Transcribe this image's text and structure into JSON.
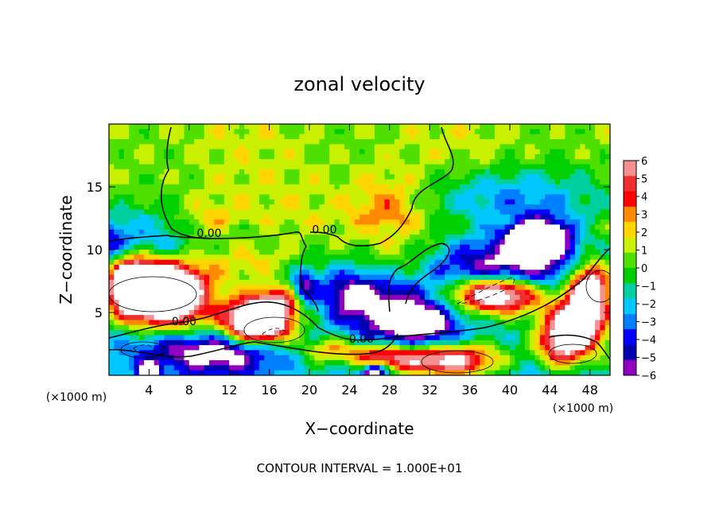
{
  "chart_data": {
    "type": "heatmap",
    "title": "zonal velocity",
    "xlabel": "X−coordinate",
    "ylabel": "Z−coordinate",
    "x_unit_left": "(×1000 m)",
    "x_unit_right": "(×1000 m)",
    "xlim": [
      0,
      50
    ],
    "ylim": [
      0,
      20
    ],
    "x_ticks": [
      4,
      8,
      12,
      16,
      20,
      24,
      28,
      32,
      36,
      40,
      44,
      48
    ],
    "y_ticks": [
      5,
      10,
      15
    ],
    "colorbar": {
      "ticks": [
        6,
        5,
        4,
        3,
        2,
        1,
        0,
        -1,
        -2,
        -3,
        -4,
        -5,
        -6
      ],
      "range": [
        -6,
        6
      ],
      "colors": [
        "#f59090",
        "#f03030",
        "#ff0000",
        "#ff8a00",
        "#ffd400",
        "#c8f000",
        "#50e000",
        "#00d000",
        "#00d0a0",
        "#00c8ff",
        "#0080ff",
        "#0000ff",
        "#0000b0",
        "#9000c0"
      ]
    },
    "contour_labels": [
      {
        "text": "0.00",
        "x": 10,
        "z": 11.0
      },
      {
        "text": "0.00",
        "x": 21.5,
        "z": 11.3
      },
      {
        "text": "0.00",
        "x": 7.5,
        "z": 4.0
      },
      {
        "text": "0.00",
        "x": 25.2,
        "z": 2.6
      }
    ],
    "features": [
      {
        "x": 0,
        "z": 10,
        "v": -6,
        "sx": 8,
        "sz": 3
      },
      {
        "x": 5.5,
        "z": 7.2,
        "v": 14,
        "sx": 4,
        "sz": 2
      },
      {
        "x": 15,
        "z": 4.2,
        "v": 14,
        "sx": 3.2,
        "sz": 1.6
      },
      {
        "x": 2,
        "z": 7.5,
        "v": 10,
        "sx": 2.5,
        "sz": 2.5
      },
      {
        "x": 6,
        "z": 5,
        "v": 6,
        "sx": 4,
        "sz": 1.5
      },
      {
        "x": 17,
        "z": 6,
        "v": 5,
        "sx": 3,
        "sz": 1.2
      },
      {
        "x": 10,
        "z": 1.8,
        "v": -5,
        "sx": 7,
        "sz": 1.5
      },
      {
        "x": 24,
        "z": 6.5,
        "v": -5,
        "sx": 3,
        "sz": 2
      },
      {
        "x": 28,
        "z": 5,
        "v": -6,
        "sx": 3.5,
        "sz": 2.5
      },
      {
        "x": 32,
        "z": 4,
        "v": -5,
        "sx": 3,
        "sz": 2
      },
      {
        "x": 40,
        "z": 8.5,
        "v": -7,
        "sx": 8,
        "sz": 2.5
      },
      {
        "x": 38.5,
        "z": 6.5,
        "v": 12,
        "sx": 4.5,
        "sz": 1.5
      },
      {
        "x": 43,
        "z": 11,
        "v": -9,
        "sx": 3,
        "sz": 1.5
      },
      {
        "x": 40,
        "z": 14,
        "v": -4,
        "sx": 9,
        "sz": 2.5
      },
      {
        "x": 33,
        "z": 1.2,
        "v": 9,
        "sx": 6,
        "sz": 1.3
      },
      {
        "x": 47,
        "z": 4,
        "v": 8,
        "sx": 3,
        "sz": 2.5
      },
      {
        "x": 48,
        "z": 7,
        "v": 10,
        "sx": 2,
        "sz": 2
      },
      {
        "x": 45,
        "z": 2.5,
        "v": 6,
        "sx": 2.5,
        "sz": 2
      },
      {
        "x": 4,
        "z": 0.4,
        "v": -8,
        "sx": 1,
        "sz": 0.6
      },
      {
        "x": 27,
        "z": 1.5,
        "v": 5,
        "sx": 3,
        "sz": 1
      },
      {
        "x": 26.5,
        "z": 0.3,
        "v": -7,
        "sx": 1.2,
        "sz": 0.6
      },
      {
        "x": 22,
        "z": 2,
        "v": 4,
        "sx": 3,
        "sz": 1
      },
      {
        "x": 28,
        "z": 13,
        "v": 3,
        "sx": 4,
        "sz": 3
      },
      {
        "x": 10,
        "z": 12,
        "v": 2,
        "sx": 3,
        "sz": 2
      },
      {
        "x": 14,
        "z": 9,
        "v": 2,
        "sx": 4,
        "sz": 1.5
      },
      {
        "x": 30,
        "z": 9,
        "v": 1,
        "sx": 3,
        "sz": 1.5
      },
      {
        "x": 19.5,
        "z": 7,
        "v": -5,
        "sx": 1.2,
        "sz": 1.5
      }
    ],
    "footer": "CONTOUR INTERVAL = 1.000E+01"
  }
}
